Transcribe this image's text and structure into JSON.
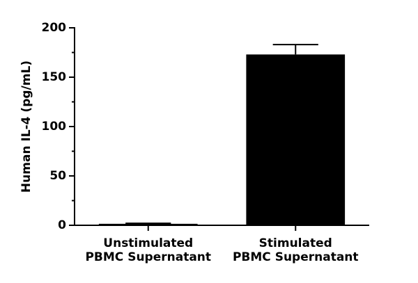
{
  "chart_data": {
    "type": "bar",
    "y_label": "Human IL-4 (pg/mL)",
    "categories": [
      [
        "Unstimulated",
        "PBMC Supernatant"
      ],
      [
        "Stimulated",
        "PBMC Supernatant"
      ]
    ],
    "values": [
      1.5,
      173
    ],
    "errors": [
      0.5,
      10
    ],
    "color": "#000000",
    "ylim": [
      0,
      200
    ],
    "yticks": [
      0,
      50,
      100,
      150,
      200
    ],
    "minor_yticks": [
      25,
      75,
      125,
      175
    ],
    "grid": false
  }
}
